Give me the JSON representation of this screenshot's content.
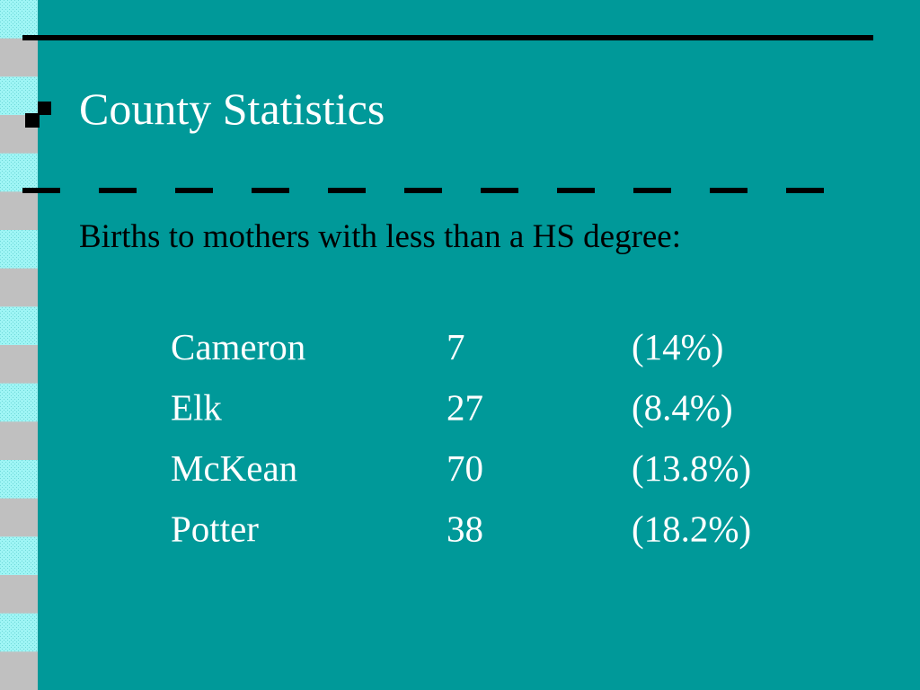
{
  "slide": {
    "title": "County Statistics",
    "subtitle": "Births to mothers with less than a HS degree:",
    "table": {
      "rows": [
        [
          "Cameron",
          7,
          "(14%)"
        ],
        [
          "Elk",
          27,
          "(8.4%)"
        ],
        [
          "McKean",
          70,
          "(13.8%)"
        ],
        [
          "Potter",
          38,
          "(18.2%)"
        ]
      ]
    }
  }
}
